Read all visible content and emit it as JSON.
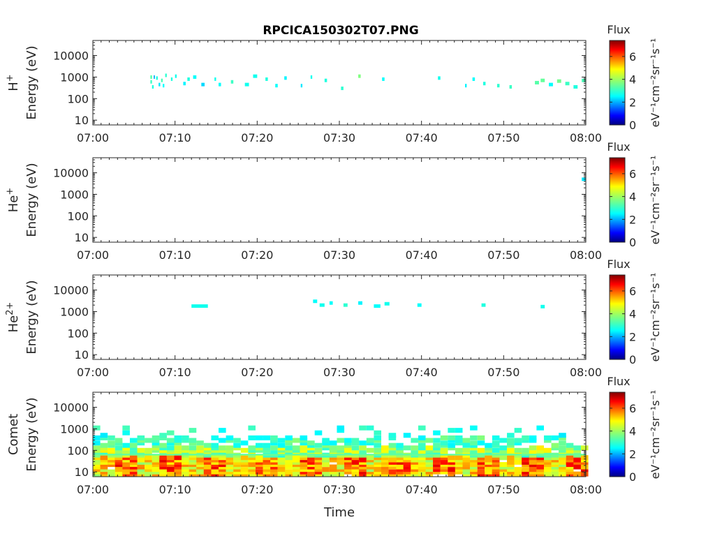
{
  "chart_data": {
    "type": "heatmap",
    "title": "RPCICA150302T07.PNG",
    "xlabel": "Time",
    "x_ticks": [
      "07:00",
      "07:10",
      "07:20",
      "07:30",
      "07:40",
      "07:50",
      "08:00"
    ],
    "xlim": [
      "07:00",
      "08:00"
    ],
    "y_scale": "log",
    "ylim": [
      6,
      50000
    ],
    "y_ticks": [
      "10",
      "100",
      "1000",
      "10000"
    ],
    "colorbar": {
      "title": "Flux",
      "label": "eV⁻¹cm⁻²sr⁻¹s⁻¹",
      "range": [
        0,
        7.4
      ],
      "ticks": [
        "0",
        "2",
        "4",
        "6"
      ],
      "colormap": "jet"
    },
    "panels": [
      {
        "species": "H",
        "charge": "+",
        "ylabel": "Energy (eV)",
        "cells": [
          [
            7.0,
            7.2,
            1000,
            3.4
          ],
          [
            7.0,
            7.2,
            600,
            3.2
          ],
          [
            7.2,
            7.4,
            350,
            3.0
          ],
          [
            7.4,
            7.55,
            1000,
            2.2
          ],
          [
            7.7,
            7.9,
            900,
            3.0
          ],
          [
            8.0,
            8.2,
            450,
            2.6
          ],
          [
            8.3,
            8.5,
            700,
            3.3
          ],
          [
            8.5,
            8.7,
            400,
            2.8
          ],
          [
            8.8,
            9.0,
            1200,
            3.1
          ],
          [
            9.5,
            9.7,
            800,
            3.0
          ],
          [
            10.0,
            10.2,
            1100,
            2.9
          ],
          [
            11.0,
            11.3,
            500,
            2.7
          ],
          [
            11.5,
            11.8,
            800,
            3.0
          ],
          [
            12.2,
            12.6,
            1000,
            2.8
          ],
          [
            13.2,
            13.6,
            450,
            2.5
          ],
          [
            14.8,
            15.0,
            800,
            2.9
          ],
          [
            15.3,
            15.6,
            450,
            2.8
          ],
          [
            16.8,
            17.1,
            600,
            3.2
          ],
          [
            18.5,
            19.0,
            450,
            2.9
          ],
          [
            19.5,
            20.0,
            1100,
            2.9
          ],
          [
            21.0,
            21.3,
            800,
            3.0
          ],
          [
            22.2,
            22.5,
            400,
            2.8
          ],
          [
            23.3,
            23.6,
            900,
            2.7
          ],
          [
            25.3,
            25.5,
            400,
            2.6
          ],
          [
            26.5,
            26.7,
            1000,
            2.9
          ],
          [
            28.2,
            28.5,
            700,
            3.0
          ],
          [
            30.2,
            30.5,
            300,
            3.1
          ],
          [
            32.3,
            32.6,
            1100,
            3.7
          ],
          [
            35.2,
            35.5,
            800,
            2.8
          ],
          [
            42.0,
            42.3,
            900,
            2.9
          ],
          [
            45.3,
            45.5,
            400,
            2.7
          ],
          [
            46.2,
            46.5,
            800,
            2.8
          ],
          [
            47.5,
            47.8,
            500,
            3.0
          ],
          [
            49.2,
            49.5,
            400,
            3.1
          ],
          [
            50.7,
            51.0,
            350,
            3.2
          ],
          [
            53.8,
            54.3,
            550,
            3.4
          ],
          [
            54.5,
            55.0,
            700,
            3.5
          ],
          [
            55.5,
            56.0,
            450,
            2.8
          ],
          [
            56.5,
            57.0,
            650,
            3.6
          ],
          [
            57.5,
            58.0,
            500,
            3.2
          ],
          [
            58.5,
            59.0,
            350,
            3.0
          ],
          [
            59.5,
            60.0,
            700,
            3.3
          ]
        ]
      },
      {
        "species": "He",
        "charge": "+",
        "ylabel": "Energy (eV)",
        "cells": [
          [
            59.5,
            60.0,
            5000,
            2.6
          ]
        ]
      },
      {
        "species": "He",
        "charge": "2+",
        "ylabel": "Energy (eV)",
        "cells": [
          [
            12.0,
            14.0,
            1800,
            2.9
          ],
          [
            26.8,
            27.3,
            3000,
            2.8
          ],
          [
            27.6,
            28.2,
            2000,
            2.9
          ],
          [
            28.8,
            29.2,
            2500,
            2.8
          ],
          [
            30.5,
            31.0,
            2000,
            3.1
          ],
          [
            32.3,
            32.8,
            2500,
            2.7
          ],
          [
            34.2,
            35.0,
            1800,
            2.8
          ],
          [
            35.5,
            36.1,
            2300,
            2.9
          ],
          [
            39.5,
            40.0,
            2000,
            2.8
          ],
          [
            47.3,
            47.8,
            2000,
            3.0
          ],
          [
            54.5,
            55.0,
            1700,
            2.9
          ]
        ]
      },
      {
        "species": "Comet",
        "charge": "",
        "ylabel": "Energy (eV)",
        "cells": "dense low-energy population (≈8–1500 eV) across the full interval, peak flux ≈6.5 near 20–80 eV"
      }
    ]
  }
}
